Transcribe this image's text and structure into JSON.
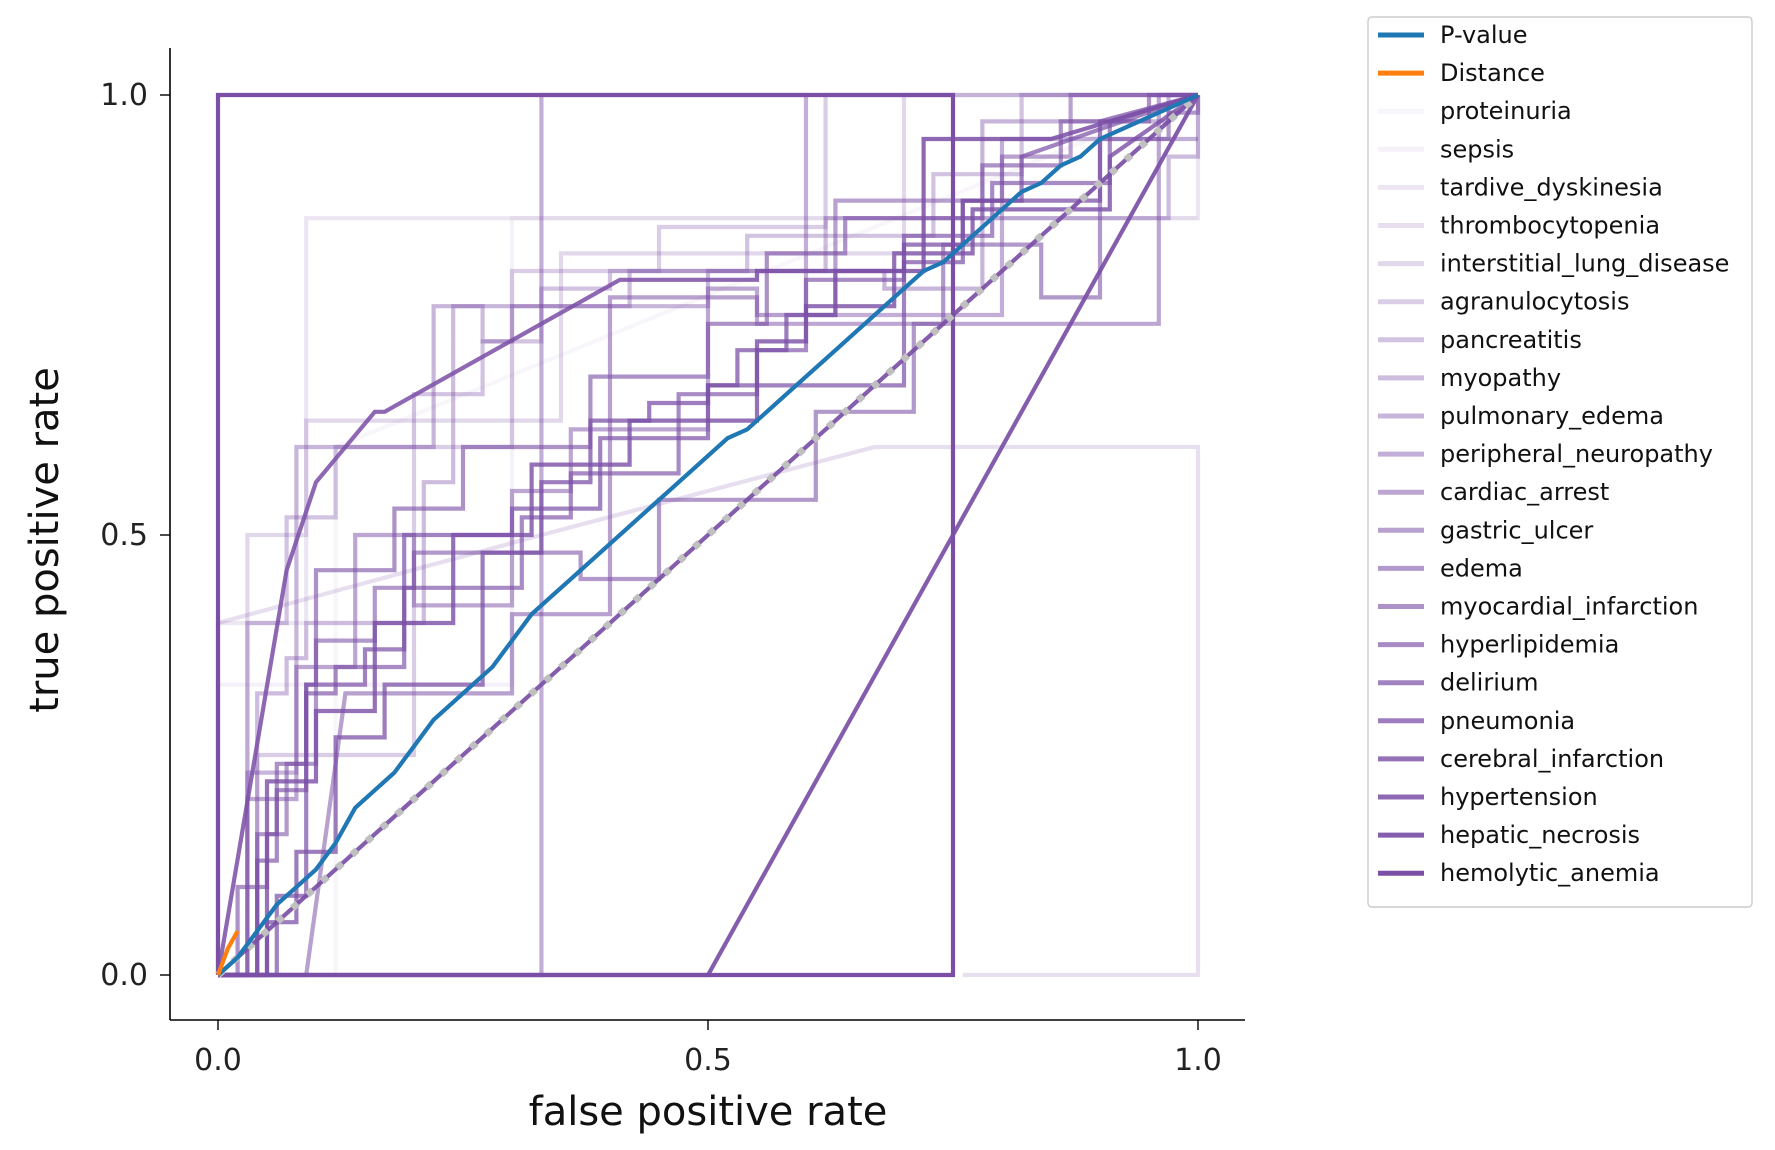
{
  "chart_data": {
    "type": "line",
    "title": "",
    "xlabel": "false positive rate",
    "ylabel": "true positive rate",
    "xlim": [
      -0.05,
      1.05
    ],
    "ylim": [
      -0.05,
      1.05
    ],
    "xticks": [
      "0.0",
      "0.5",
      "1.0"
    ],
    "yticks": [
      "0.0",
      "0.5",
      "1.0"
    ],
    "grid": false,
    "legend_position": "outside-right",
    "colors": {
      "pvalue": "#1f77b4",
      "distance": "#ff7f0e",
      "disease": "#7b4fa6",
      "chance": "#c0c0c0"
    },
    "series": [
      {
        "name": "P-value",
        "kind": "main",
        "color": "#1f77b4",
        "x": [
          0,
          0.02,
          0.04,
          0.06,
          0.08,
          0.1,
          0.12,
          0.14,
          0.16,
          0.18,
          0.2,
          0.22,
          0.24,
          0.26,
          0.28,
          0.3,
          0.32,
          0.34,
          0.36,
          0.38,
          0.4,
          0.42,
          0.44,
          0.46,
          0.48,
          0.5,
          0.52,
          0.54,
          0.56,
          0.58,
          0.6,
          0.62,
          0.64,
          0.66,
          0.68,
          0.7,
          0.72,
          0.74,
          0.76,
          0.78,
          0.8,
          0.82,
          0.84,
          0.86,
          0.88,
          0.9,
          0.92,
          0.94,
          0.96,
          0.98,
          1.0
        ],
        "y": [
          0,
          0.02,
          0.05,
          0.08,
          0.1,
          0.12,
          0.15,
          0.19,
          0.21,
          0.23,
          0.26,
          0.29,
          0.31,
          0.33,
          0.35,
          0.38,
          0.41,
          0.43,
          0.45,
          0.47,
          0.49,
          0.51,
          0.53,
          0.55,
          0.57,
          0.59,
          0.61,
          0.62,
          0.64,
          0.66,
          0.68,
          0.7,
          0.72,
          0.74,
          0.76,
          0.78,
          0.8,
          0.81,
          0.83,
          0.85,
          0.87,
          0.89,
          0.9,
          0.92,
          0.93,
          0.95,
          0.96,
          0.97,
          0.98,
          0.99,
          1.0
        ]
      },
      {
        "name": "Distance",
        "kind": "main",
        "color": "#ff7f0e",
        "x": [
          0,
          0.01,
          0.02
        ],
        "y": [
          0,
          0.03,
          0.05
        ]
      },
      {
        "name": "proteinuria",
        "kind": "disease",
        "opacity": 0.05,
        "x": [
          0,
          0.12,
          0.12,
          1.0
        ],
        "y": [
          0,
          0,
          0.6,
          1.0
        ]
      },
      {
        "name": "sepsis",
        "kind": "disease",
        "opacity": 0.08,
        "x": [
          0,
          0,
          0.3,
          0.3,
          1.0
        ],
        "y": [
          0,
          0.33,
          0.33,
          0.86,
          0.86
        ]
      },
      {
        "name": "tardive_dyskinesia",
        "kind": "disease",
        "opacity": 0.14,
        "x": [
          0,
          0,
          0.09,
          0.09,
          1.0,
          1.0
        ],
        "y": [
          0,
          0.4,
          0.4,
          0.86,
          0.86,
          1.0
        ]
      },
      {
        "name": "thrombocytopenia",
        "kind": "disease",
        "opacity": 0.18,
        "x": [
          0,
          0,
          0.33,
          0.67,
          1.0,
          1.0,
          0.76
        ],
        "y": [
          0,
          0.4,
          0.5,
          0.6,
          0.6,
          0,
          0
        ]
      },
      {
        "name": "interstitial_lung_disease",
        "kind": "disease",
        "opacity": 0.22,
        "x": [
          0,
          0.03,
          0.03,
          0.09,
          0.09,
          0.35,
          0.35,
          0.7,
          0.7,
          1.0
        ],
        "y": [
          0,
          0,
          0.5,
          0.5,
          0.63,
          0.63,
          0.82,
          0.82,
          1.0,
          1.0
        ]
      },
      {
        "name": "agranulocytosis",
        "kind": "disease",
        "opacity": 0.28,
        "x": [
          0,
          0.04,
          0.04,
          0.2,
          0.2,
          0.3,
          0.3,
          0.45,
          0.45,
          0.62,
          0.62,
          1.0
        ],
        "y": [
          0,
          0,
          0.25,
          0.25,
          0.6,
          0.6,
          0.8,
          0.8,
          0.85,
          0.85,
          1.0,
          1.0
        ]
      },
      {
        "name": "pancreatitis",
        "kind": "disease",
        "opacity": 0.34,
        "x": [
          0,
          0.03,
          0.03,
          0.07,
          0.07,
          0.12,
          0.12,
          0.2,
          0.2,
          0.27,
          0.27,
          0.33,
          0.33,
          0.4,
          0.4,
          0.54,
          0.54,
          0.73,
          0.73,
          0.82,
          0.82,
          1.0
        ],
        "y": [
          0,
          0,
          0.4,
          0.4,
          0.52,
          0.52,
          0.6,
          0.6,
          0.66,
          0.66,
          0.72,
          0.72,
          0.78,
          0.78,
          0.8,
          0.8,
          0.84,
          0.84,
          0.91,
          0.91,
          1.0,
          1.0
        ]
      },
      {
        "name": "myopathy",
        "kind": "disease",
        "opacity": 0.38,
        "x": [
          0,
          0.04,
          0.04,
          0.07,
          0.07,
          0.09,
          0.09,
          0.21,
          0.21,
          0.24,
          0.24,
          0.27,
          0.27,
          0.3,
          0.3,
          0.42,
          0.42,
          0.62,
          0.62,
          0.8,
          0.8,
          0.97,
          0.97,
          1.0,
          1.0
        ],
        "y": [
          0,
          0,
          0.32,
          0.32,
          0.36,
          0.36,
          0.4,
          0.4,
          0.56,
          0.56,
          0.76,
          0.76,
          0.72,
          0.72,
          0.76,
          0.76,
          0.8,
          0.8,
          0.86,
          0.86,
          0.86,
          0.86,
          0.93,
          0.93,
          1.0
        ]
      },
      {
        "name": "pulmonary_edema",
        "kind": "disease",
        "opacity": 0.42,
        "x": [
          0,
          0.03,
          0.03,
          0.08,
          0.08,
          0.22,
          0.22,
          0.38,
          0.38,
          0.5,
          0.5,
          0.68,
          0.68,
          0.78,
          0.78,
          0.97,
          0.97,
          1.0
        ],
        "y": [
          0,
          0,
          0.23,
          0.23,
          0.6,
          0.6,
          0.76,
          0.76,
          0.76,
          0.76,
          0.8,
          0.8,
          0.78,
          0.78,
          0.97,
          0.97,
          1.0,
          1.0
        ]
      },
      {
        "name": "peripheral_neuropathy",
        "kind": "disease",
        "opacity": 0.46,
        "x": [
          0,
          0.33,
          0.33,
          0.6,
          0.6,
          0.8,
          0.8,
          1.0
        ],
        "y": [
          0,
          0,
          1.0,
          1.0,
          0.75,
          0.75,
          0.95,
          0.95
        ]
      },
      {
        "name": "cardiac_arrest",
        "kind": "disease",
        "opacity": 0.5,
        "x": [
          0,
          0.03,
          0.03,
          0.08,
          0.08,
          0.14,
          0.14,
          0.2,
          0.2,
          0.3,
          0.3,
          0.36,
          0.36,
          0.5,
          0.5,
          0.55,
          0.55,
          0.96,
          0.96,
          1.0
        ],
        "y": [
          0,
          0,
          0.2,
          0.2,
          0.35,
          0.35,
          0.5,
          0.5,
          0.42,
          0.42,
          0.55,
          0.55,
          0.62,
          0.62,
          0.78,
          0.78,
          0.74,
          0.74,
          1.0,
          1.0
        ]
      },
      {
        "name": "gastric_ulcer",
        "kind": "disease",
        "opacity": 0.54,
        "x": [
          0,
          0.09,
          0.13,
          0.3,
          0.3,
          0.4,
          0.4,
          0.55,
          0.55,
          0.63,
          0.63,
          0.8,
          0.8,
          0.87,
          0.87,
          1.0
        ],
        "y": [
          0,
          0,
          0.32,
          0.32,
          0.41,
          0.41,
          0.77,
          0.77,
          0.75,
          0.75,
          0.88,
          0.88,
          0.93,
          0.93,
          1.0,
          1.0
        ]
      },
      {
        "name": "edema",
        "kind": "disease",
        "opacity": 0.58,
        "x": [
          0,
          0.04,
          0.04,
          0.07,
          0.07,
          0.1,
          0.1,
          0.16,
          0.16,
          0.2,
          0.2,
          0.37,
          0.37,
          0.45,
          0.45,
          0.61,
          0.61,
          0.71,
          0.71,
          0.74,
          0.74,
          0.84,
          0.84,
          0.9,
          0.9,
          0.97,
          0.97,
          1.0,
          1.0
        ],
        "y": [
          0,
          0,
          0.16,
          0.16,
          0.24,
          0.24,
          0.38,
          0.38,
          0.44,
          0.44,
          0.48,
          0.48,
          0.45,
          0.45,
          0.54,
          0.54,
          0.64,
          0.64,
          0.74,
          0.74,
          0.83,
          0.83,
          0.77,
          0.77,
          0.95,
          0.95,
          0.98,
          0.98,
          1.0
        ]
      },
      {
        "name": "myocardial_infarction",
        "kind": "disease",
        "opacity": 0.62,
        "x": [
          0,
          0.02,
          0.02,
          0.05,
          0.05,
          0.06,
          0.06,
          0.09,
          0.09,
          0.1,
          0.1,
          0.18,
          0.18,
          0.25,
          0.25,
          0.38,
          0.38,
          0.5,
          0.5,
          0.56,
          0.56,
          0.64,
          0.64,
          0.78,
          0.78,
          0.86,
          0.86,
          0.95,
          0.95,
          1.0
        ],
        "y": [
          0,
          0,
          0.1,
          0.1,
          0.16,
          0.16,
          0.24,
          0.24,
          0.33,
          0.33,
          0.46,
          0.46,
          0.53,
          0.53,
          0.6,
          0.6,
          0.68,
          0.68,
          0.74,
          0.74,
          0.82,
          0.82,
          0.86,
          0.86,
          0.92,
          0.92,
          0.97,
          0.97,
          1.0,
          1.0
        ]
      },
      {
        "name": "hyperlipidemia",
        "kind": "disease",
        "opacity": 0.66,
        "x": [
          0,
          0.04,
          0.04,
          0.06,
          0.06,
          0.09,
          0.09,
          0.12,
          0.12,
          0.19,
          0.19,
          0.31,
          0.31,
          0.36,
          0.36,
          0.47,
          0.47,
          0.55,
          0.55,
          0.6,
          0.6,
          0.7,
          0.7,
          0.79,
          0.79,
          0.91,
          0.91,
          1.0
        ],
        "y": [
          0,
          0,
          0.13,
          0.13,
          0.21,
          0.21,
          0.32,
          0.32,
          0.35,
          0.35,
          0.44,
          0.44,
          0.52,
          0.52,
          0.57,
          0.57,
          0.66,
          0.66,
          0.71,
          0.71,
          0.79,
          0.79,
          0.84,
          0.84,
          0.9,
          0.9,
          0.97,
          1.0
        ]
      },
      {
        "name": "delirium",
        "kind": "disease",
        "opacity": 0.7,
        "x": [
          0,
          0.06,
          0.06,
          0.09,
          0.09,
          0.15,
          0.15,
          0.19,
          0.19,
          0.3,
          0.3,
          0.39,
          0.39,
          0.5,
          0.5,
          0.7,
          0.7,
          0.76,
          0.76,
          0.82,
          0.82,
          1.0
        ],
        "y": [
          0,
          0,
          0.09,
          0.09,
          0.33,
          0.33,
          0.37,
          0.37,
          0.5,
          0.5,
          0.53,
          0.53,
          0.61,
          0.61,
          0.67,
          0.67,
          0.81,
          0.81,
          0.88,
          0.88,
          0.93,
          1.0
        ]
      },
      {
        "name": "pneumonia",
        "kind": "disease",
        "opacity": 0.74,
        "x": [
          0,
          0.05,
          0.05,
          0.08,
          0.08,
          0.12,
          0.12,
          0.17,
          0.17,
          0.27,
          0.27,
          0.33,
          0.33,
          0.38,
          0.38,
          0.44,
          0.44,
          0.5,
          0.5,
          0.53,
          0.53,
          0.58,
          0.58,
          0.63,
          0.63,
          0.7,
          0.7,
          0.76,
          0.76,
          0.9,
          0.9,
          1.0
        ],
        "y": [
          0,
          0,
          0.06,
          0.06,
          0.14,
          0.14,
          0.27,
          0.27,
          0.33,
          0.33,
          0.48,
          0.48,
          0.56,
          0.56,
          0.63,
          0.63,
          0.65,
          0.65,
          0.67,
          0.67,
          0.71,
          0.71,
          0.75,
          0.75,
          0.8,
          0.8,
          0.83,
          0.83,
          0.88,
          0.88,
          0.97,
          1.0
        ]
      },
      {
        "name": "cerebral_infarction",
        "kind": "disease",
        "opacity": 0.8,
        "x": [
          0,
          0.05,
          0.05,
          0.1,
          0.1,
          0.16,
          0.16,
          0.24,
          0.24,
          0.32,
          0.32,
          0.42,
          0.42,
          0.55,
          0.55,
          0.6,
          0.6,
          0.69,
          0.69,
          0.77,
          0.77,
          0.91,
          0.91,
          1.0
        ],
        "y": [
          0,
          0,
          0.22,
          0.22,
          0.3,
          0.3,
          0.4,
          0.4,
          0.5,
          0.5,
          0.58,
          0.58,
          0.63,
          0.63,
          0.72,
          0.72,
          0.76,
          0.76,
          0.82,
          0.82,
          0.87,
          0.87,
          0.93,
          1.0
        ]
      },
      {
        "name": "hypertension",
        "kind": "disease",
        "opacity": 0.86,
        "x": [
          0,
          0.07,
          0.1,
          0.16,
          0.17,
          0.41,
          0.55,
          0.55,
          0.72,
          0.72,
          0.85,
          1.0
        ],
        "y": [
          0,
          0.46,
          0.56,
          0.64,
          0.64,
          0.79,
          0.79,
          0.8,
          0.8,
          0.95,
          0.95,
          1.0
        ]
      },
      {
        "name": "hepatic_necrosis",
        "kind": "disease",
        "opacity": 0.92,
        "x": [
          0,
          1.0,
          1.0,
          0.5,
          0.5,
          0
        ],
        "y": [
          0,
          1.0,
          1.0,
          0,
          0,
          0
        ]
      },
      {
        "name": "hemolytic_anemia",
        "kind": "disease",
        "opacity": 1.0,
        "x": [
          0,
          0,
          0.75,
          0.75,
          0
        ],
        "y": [
          0,
          1.0,
          1.0,
          0,
          0
        ]
      }
    ],
    "chance_line": {
      "x": [
        0,
        1
      ],
      "y": [
        0,
        1
      ]
    }
  }
}
